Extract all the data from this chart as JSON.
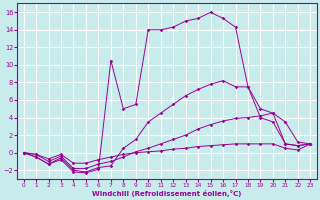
{
  "xlabel": "Windchill (Refroidissement éolien,°C)",
  "bg_color": "#c8ecec",
  "grid_color": "#ffffff",
  "line_color": "#990099",
  "xlim": [
    -0.5,
    23.5
  ],
  "ylim": [
    -3.0,
    17.0
  ],
  "xticks": [
    0,
    1,
    2,
    3,
    4,
    5,
    6,
    7,
    8,
    9,
    10,
    11,
    12,
    13,
    14,
    15,
    16,
    17,
    18,
    19,
    20,
    21,
    22,
    23
  ],
  "yticks": [
    -2,
    0,
    2,
    4,
    6,
    8,
    10,
    12,
    14,
    16
  ],
  "lines": [
    {
      "x": [
        0,
        1,
        2,
        3,
        4,
        5,
        6,
        7,
        8,
        9,
        10,
        11,
        12,
        13,
        14,
        15,
        16,
        17,
        18,
        19,
        20,
        21,
        22,
        23
      ],
      "y": [
        0,
        -0.5,
        -1.3,
        -0.8,
        -2.2,
        -2.3,
        -1.9,
        10.5,
        5.0,
        5.5,
        14.0,
        14.0,
        14.3,
        15.0,
        15.3,
        16.0,
        15.3,
        14.3,
        7.5,
        5.0,
        4.5,
        1.0,
        0.8,
        1.0
      ]
    },
    {
      "x": [
        0,
        1,
        2,
        3,
        4,
        5,
        6,
        7,
        8,
        9,
        10,
        11,
        12,
        13,
        14,
        15,
        16,
        17,
        18,
        19,
        20,
        21,
        22,
        23
      ],
      "y": [
        0,
        -0.5,
        -1.3,
        -0.6,
        -2.0,
        -2.2,
        -1.7,
        -1.5,
        0.5,
        1.5,
        3.5,
        4.5,
        5.5,
        6.5,
        7.2,
        7.8,
        8.2,
        7.5,
        7.5,
        4.0,
        3.5,
        1.0,
        0.8,
        1.0
      ]
    },
    {
      "x": [
        0,
        1,
        2,
        3,
        4,
        5,
        6,
        7,
        8,
        9,
        10,
        11,
        12,
        13,
        14,
        15,
        16,
        17,
        18,
        19,
        20,
        21,
        22,
        23
      ],
      "y": [
        0,
        -0.2,
        -1.0,
        -0.4,
        -1.8,
        -1.8,
        -1.3,
        -1.0,
        -0.5,
        0.1,
        0.5,
        1.0,
        1.5,
        2.0,
        2.7,
        3.2,
        3.6,
        3.9,
        4.0,
        4.2,
        4.5,
        3.5,
        1.2,
        1.0
      ]
    },
    {
      "x": [
        0,
        1,
        2,
        3,
        4,
        5,
        6,
        7,
        8,
        9,
        10,
        11,
        12,
        13,
        14,
        15,
        16,
        17,
        18,
        19,
        20,
        21,
        22,
        23
      ],
      "y": [
        0,
        -0.2,
        -0.7,
        -0.2,
        -1.2,
        -1.2,
        -0.8,
        -0.5,
        -0.2,
        0.0,
        0.1,
        0.2,
        0.4,
        0.5,
        0.7,
        0.8,
        0.9,
        1.0,
        1.0,
        1.0,
        1.0,
        0.5,
        0.3,
        1.0
      ]
    }
  ]
}
